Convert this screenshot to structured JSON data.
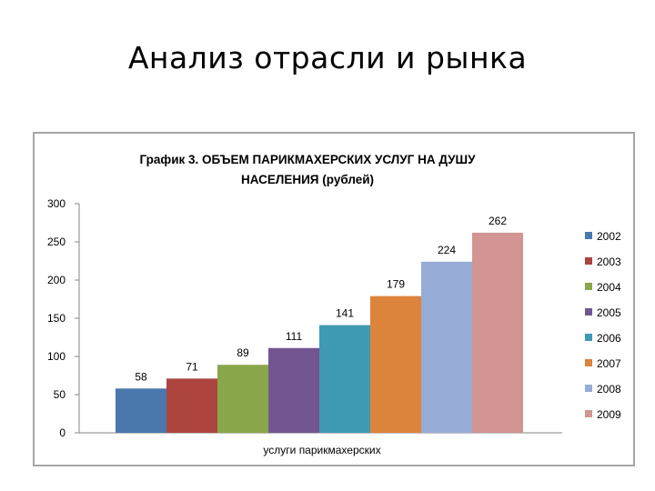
{
  "slide": {
    "title": "Анализ отрасли и рынка"
  },
  "chart_data": {
    "type": "bar",
    "title_line1": "График  3. ОБЪЕМ ПАРИКМАХЕРСКИХ УСЛУГ НА ДУШУ",
    "title_line2": "НАСЕЛЕНИЯ  (рублей)",
    "xlabel": "услуги парикмахерских",
    "ylabel": "",
    "ylim": [
      0,
      300
    ],
    "yticks": [
      0,
      50,
      100,
      150,
      200,
      250,
      300
    ],
    "grid": false,
    "legend_position": "right",
    "categories": [
      "услуги парикмахерских"
    ],
    "series": [
      {
        "name": "2002",
        "values": [
          58
        ],
        "color": "#4a77ad"
      },
      {
        "name": "2003",
        "values": [
          71
        ],
        "color": "#ad4440"
      },
      {
        "name": "2004",
        "values": [
          89
        ],
        "color": "#8aa64a"
      },
      {
        "name": "2005",
        "values": [
          111
        ],
        "color": "#735591"
      },
      {
        "name": "2006",
        "values": [
          141
        ],
        "color": "#3f9ab3"
      },
      {
        "name": "2007",
        "values": [
          179
        ],
        "color": "#dc843c"
      },
      {
        "name": "2008",
        "values": [
          224
        ],
        "color": "#96acd6"
      },
      {
        "name": "2009",
        "values": [
          262
        ],
        "color": "#d39494"
      }
    ]
  }
}
